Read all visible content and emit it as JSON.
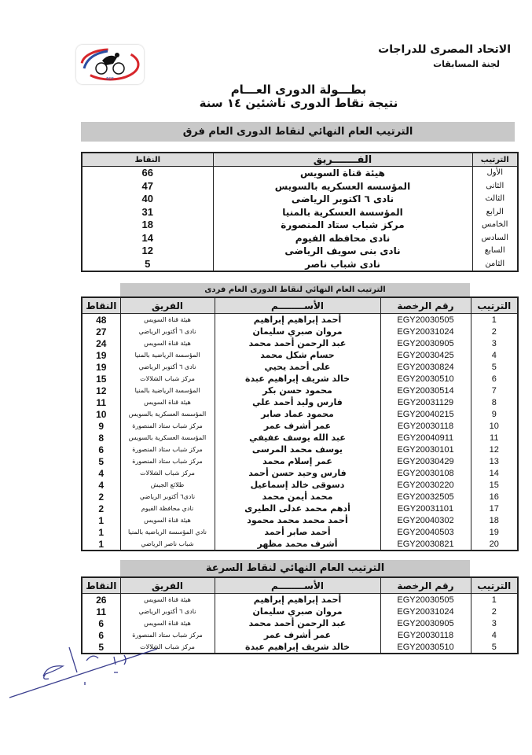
{
  "header": {
    "organization": "الاتحاد المصرى للدراجات",
    "committee": "لجنة المسابقات",
    "logo_text": "ECF"
  },
  "titles": {
    "line1": "بطـــولة الدورى العـــام",
    "line2": "نتيجة نقاط الدورى ناشئين ١٤ سنة"
  },
  "teams_table": {
    "title": "الترتيب العام النهائي لنقاط الدورى العام فرق",
    "headers": {
      "rank": "الترتيب",
      "team": "الفـــــــريق",
      "points": "النقاط"
    },
    "rows": [
      {
        "rank": "الأول",
        "team": "هيئة قناة السويس",
        "points": "66"
      },
      {
        "rank": "الثانى",
        "team": "المؤسسه العسكريه بالسويس",
        "points": "47"
      },
      {
        "rank": "الثالث",
        "team": "نادى ٦ اكتوبر الرياضى",
        "points": "40"
      },
      {
        "rank": "الرابع",
        "team": "المؤسسة العسكرية بالمنيا",
        "points": "31"
      },
      {
        "rank": "الخامس",
        "team": "مركز شباب ستاد المنصورة",
        "points": "18"
      },
      {
        "rank": "السادس",
        "team": "نادى محافظه الفيوم",
        "points": "14"
      },
      {
        "rank": "السابع",
        "team": "نادى بنى سويف الرياضى",
        "points": "12"
      },
      {
        "rank": "الثامن",
        "team": "نادى شباب ناصر",
        "points": "5"
      }
    ]
  },
  "individual_table": {
    "title": "الترتيب العام النهائي لنقاط الدورى العام فردى",
    "headers": {
      "rank": "الترتيب",
      "license": "رقم الرخصة",
      "name": "الأســــــــم",
      "team": "الفريق",
      "points": "النقاط"
    },
    "rows": [
      {
        "rank": "1",
        "license": "EGY20030505",
        "name": "أحمد إبراهيم إبراهيم",
        "team": "هيئة قناة السويس",
        "points": "48"
      },
      {
        "rank": "2",
        "license": "EGY20031024",
        "name": "مروان صبري سليمان",
        "team": "نادى ٦ أكتوبر الرياضي",
        "points": "27"
      },
      {
        "rank": "3",
        "license": "EGY20030905",
        "name": "عبد الرحمن أحمد محمد",
        "team": "هيئة قناة السويس",
        "points": "24"
      },
      {
        "rank": "4",
        "license": "EGY20030425",
        "name": "حسام شكل محمد",
        "team": "المؤسسة الرياضية بالمنيا",
        "points": "19"
      },
      {
        "rank": "5",
        "license": "EGY20030824",
        "name": "على أحمد يحيي",
        "team": "نادى ٦ أكتوبر الرياضي",
        "points": "19"
      },
      {
        "rank": "6",
        "license": "EGY20030510",
        "name": "خالد شريف إبراهيم عبدة",
        "team": "مركز شباب الشلالات",
        "points": "15"
      },
      {
        "rank": "7",
        "license": "EGY20030514",
        "name": "محمود حسن بكر",
        "team": "المؤسسة الرياضية بالمنيا",
        "points": "12"
      },
      {
        "rank": "8",
        "license": "EGY20031129",
        "name": "فارس وليد أحمد علي",
        "team": "هيئة قناة السويس",
        "points": "11"
      },
      {
        "rank": "9",
        "license": "EGY20040215",
        "name": "محمود عماد صابر",
        "team": "المؤسسة العسكرية بالسويس",
        "points": "10"
      },
      {
        "rank": "10",
        "license": "EGY20030118",
        "name": "عمر أشرف عمر",
        "team": "مركز شباب ستاد المنصورة",
        "points": "9"
      },
      {
        "rank": "11",
        "license": "EGY20040911",
        "name": "عبد الله يوسف عفيفي",
        "team": "المؤسسة العسكرية بالسويس",
        "points": "8"
      },
      {
        "rank": "12",
        "license": "EGY20030101",
        "name": "يوسف محمد المرسى",
        "team": "مركز شباب ستاد المنصورة",
        "points": "6"
      },
      {
        "rank": "13",
        "license": "EGY20030429",
        "name": "عمر إسلام محمد",
        "team": "مركز شباب ستاد المنصورة",
        "points": "5"
      },
      {
        "rank": "14",
        "license": "EGY20030108",
        "name": "فارس وحيد حسن أحمد",
        "team": "مركز شباب الشلالات",
        "points": "4"
      },
      {
        "rank": "15",
        "license": "EGY20030220",
        "name": "دسوقى خالد إسماعيل",
        "team": "طلائع الجيش",
        "points": "4"
      },
      {
        "rank": "16",
        "license": "EGY20032505",
        "name": "محمد أيمن محمد",
        "team": "نادى٦ أكتوبر الرياضي",
        "points": "2"
      },
      {
        "rank": "17",
        "license": "EGY20031101",
        "name": "أدهم محمد عدلى الطيرى",
        "team": "نادي محافظة الفيوم",
        "points": "2"
      },
      {
        "rank": "18",
        "license": "EGY20040302",
        "name": "أحمد محمد محمد محمود",
        "team": "هيئة قناة السويس",
        "points": "1"
      },
      {
        "rank": "19",
        "license": "EGY20040503",
        "name": "أحمد صابر أحمد",
        "team": "نادي المؤسسة الرياضية بالمنيا",
        "points": "1"
      },
      {
        "rank": "20",
        "license": "EGY20030821",
        "name": "أشرف محمد مظهر",
        "team": "شباب ناصر الرياضي",
        "points": "1"
      }
    ]
  },
  "sprint_table": {
    "title": "الترتيب العام النهائي لنقاط السرعة",
    "headers": {
      "rank": "الترتيب",
      "license": "رقم الرخصة",
      "name": "الأســــــــم",
      "team": "الفريق",
      "points": "النقاط"
    },
    "rows": [
      {
        "rank": "1",
        "license": "EGY20030505",
        "name": "أحمد إبراهيم إبراهيم",
        "team": "هيئة قناة السويس",
        "points": "26"
      },
      {
        "rank": "2",
        "license": "EGY20031024",
        "name": "مروان صبري سليمان",
        "team": "نادى ٦ أكتوبر الرياضي",
        "points": "11"
      },
      {
        "rank": "3",
        "license": "EGY20030905",
        "name": "عبد الرحمن أحمد محمد",
        "team": "هيئة قناة السويس",
        "points": "6"
      },
      {
        "rank": "4",
        "license": "EGY20030118",
        "name": "عمر أشرف عمر",
        "team": "مركز شباب ستاد المنصورة",
        "points": "6"
      },
      {
        "rank": "5",
        "license": "EGY20030510",
        "name": "خالد شريف إبراهيم عبدة",
        "team": "مركز شباب الشلالات",
        "points": "5"
      }
    ]
  },
  "colors": {
    "header_gray": "#c8c8c8",
    "logo_red": "#d7262b",
    "logo_blue": "#2b4ea2",
    "signature": "#3b3f8f"
  }
}
